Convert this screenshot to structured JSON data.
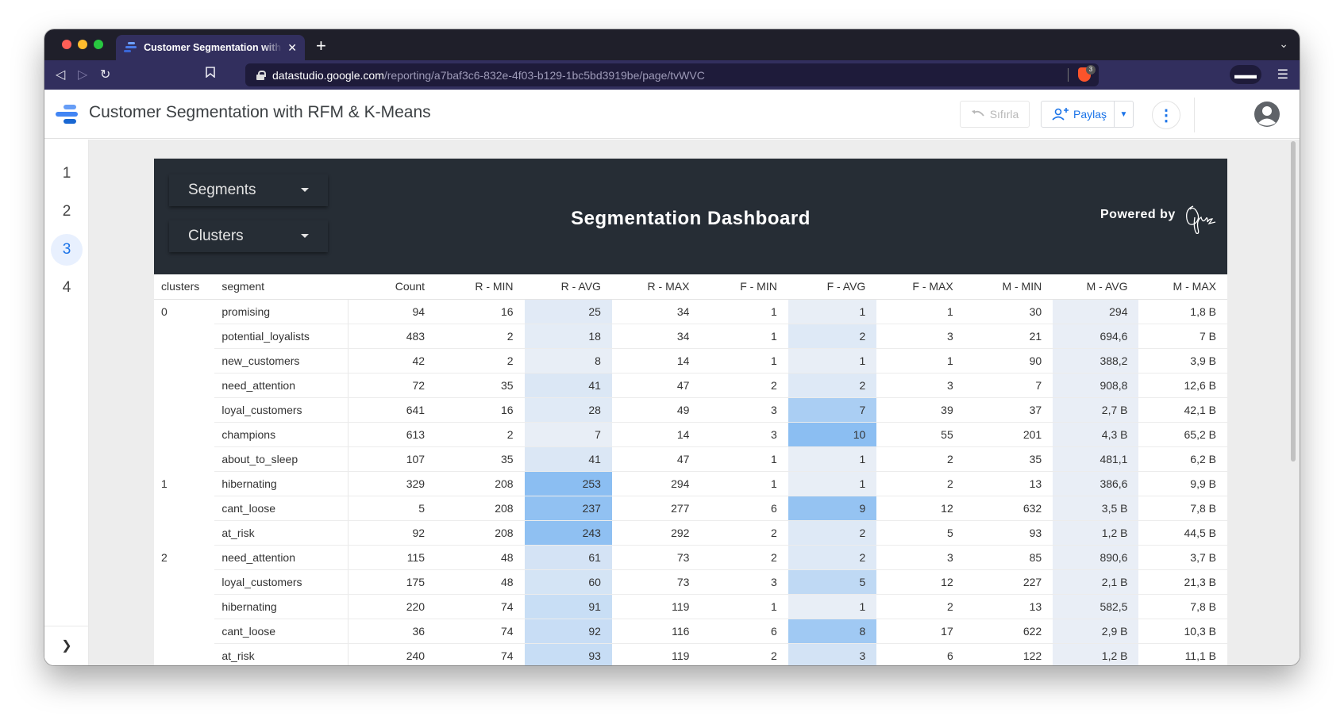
{
  "browser": {
    "tab_title": "Customer Segmentation with RFM & K-Means",
    "new_tab_icon": "plus-icon",
    "url_host": "datastudio.google.com",
    "url_path": "/reporting/a7baf3c6-832e-4f03-b129-1bc5bd3919be/page/tvWVC",
    "shield_badge": "3"
  },
  "header": {
    "title": "Customer Segmentation with RFM & K-Means",
    "reset_label": "Sıfırla",
    "share_label": "Paylaş",
    "accent": "#1a73e8"
  },
  "pages": [
    "1",
    "2",
    "3",
    "4"
  ],
  "active_page": "3",
  "dashboard": {
    "segments_label": "Segments",
    "clusters_label": "Clusters",
    "title": "Segmentation Dashboard",
    "powered_by": "Powered by",
    "signature_text": "Oğuz"
  },
  "table": {
    "columns": [
      "clusters",
      "segment",
      "Count",
      "R - MIN",
      "R - AVG",
      "R - MAX",
      "F - MIN",
      "F - AVG",
      "F - MAX",
      "M - MIN",
      "M - AVG",
      "M - MAX"
    ],
    "rows": [
      [
        "0",
        "promising",
        "94",
        "16",
        "25",
        "34",
        "1",
        "1",
        "1",
        "30",
        "294",
        "1,8 B"
      ],
      [
        "",
        "potential_loyalists",
        "483",
        "2",
        "18",
        "34",
        "1",
        "2",
        "3",
        "21",
        "694,6",
        "7 B"
      ],
      [
        "",
        "new_customers",
        "42",
        "2",
        "8",
        "14",
        "1",
        "1",
        "1",
        "90",
        "388,2",
        "3,9 B"
      ],
      [
        "",
        "need_attention",
        "72",
        "35",
        "41",
        "47",
        "2",
        "2",
        "3",
        "7",
        "908,8",
        "12,6 B"
      ],
      [
        "",
        "loyal_customers",
        "641",
        "16",
        "28",
        "49",
        "3",
        "7",
        "39",
        "37",
        "2,7 B",
        "42,1 B"
      ],
      [
        "",
        "champions",
        "613",
        "2",
        "7",
        "14",
        "3",
        "10",
        "55",
        "201",
        "4,3 B",
        "65,2 B"
      ],
      [
        "",
        "about_to_sleep",
        "107",
        "35",
        "41",
        "47",
        "1",
        "1",
        "2",
        "35",
        "481,1",
        "6,2 B"
      ],
      [
        "1",
        "hibernating",
        "329",
        "208",
        "253",
        "294",
        "1",
        "1",
        "2",
        "13",
        "386,6",
        "9,9 B"
      ],
      [
        "",
        "cant_loose",
        "5",
        "208",
        "237",
        "277",
        "6",
        "9",
        "12",
        "632",
        "3,5 B",
        "7,8 B"
      ],
      [
        "",
        "at_risk",
        "92",
        "208",
        "243",
        "292",
        "2",
        "2",
        "5",
        "93",
        "1,2 B",
        "44,5 B"
      ],
      [
        "2",
        "need_attention",
        "115",
        "48",
        "61",
        "73",
        "2",
        "2",
        "3",
        "85",
        "890,6",
        "3,7 B"
      ],
      [
        "",
        "loyal_customers",
        "175",
        "48",
        "60",
        "73",
        "3",
        "5",
        "12",
        "227",
        "2,1 B",
        "21,3 B"
      ],
      [
        "",
        "hibernating",
        "220",
        "74",
        "91",
        "119",
        "1",
        "1",
        "2",
        "13",
        "582,5",
        "7,8 B"
      ],
      [
        "",
        "cant_loose",
        "36",
        "74",
        "92",
        "116",
        "6",
        "8",
        "17",
        "622",
        "2,9 B",
        "10,3 B"
      ],
      [
        "",
        "at_risk",
        "240",
        "74",
        "93",
        "119",
        "2",
        "3",
        "6",
        "122",
        "1,2 B",
        "11,1 B"
      ]
    ]
  }
}
